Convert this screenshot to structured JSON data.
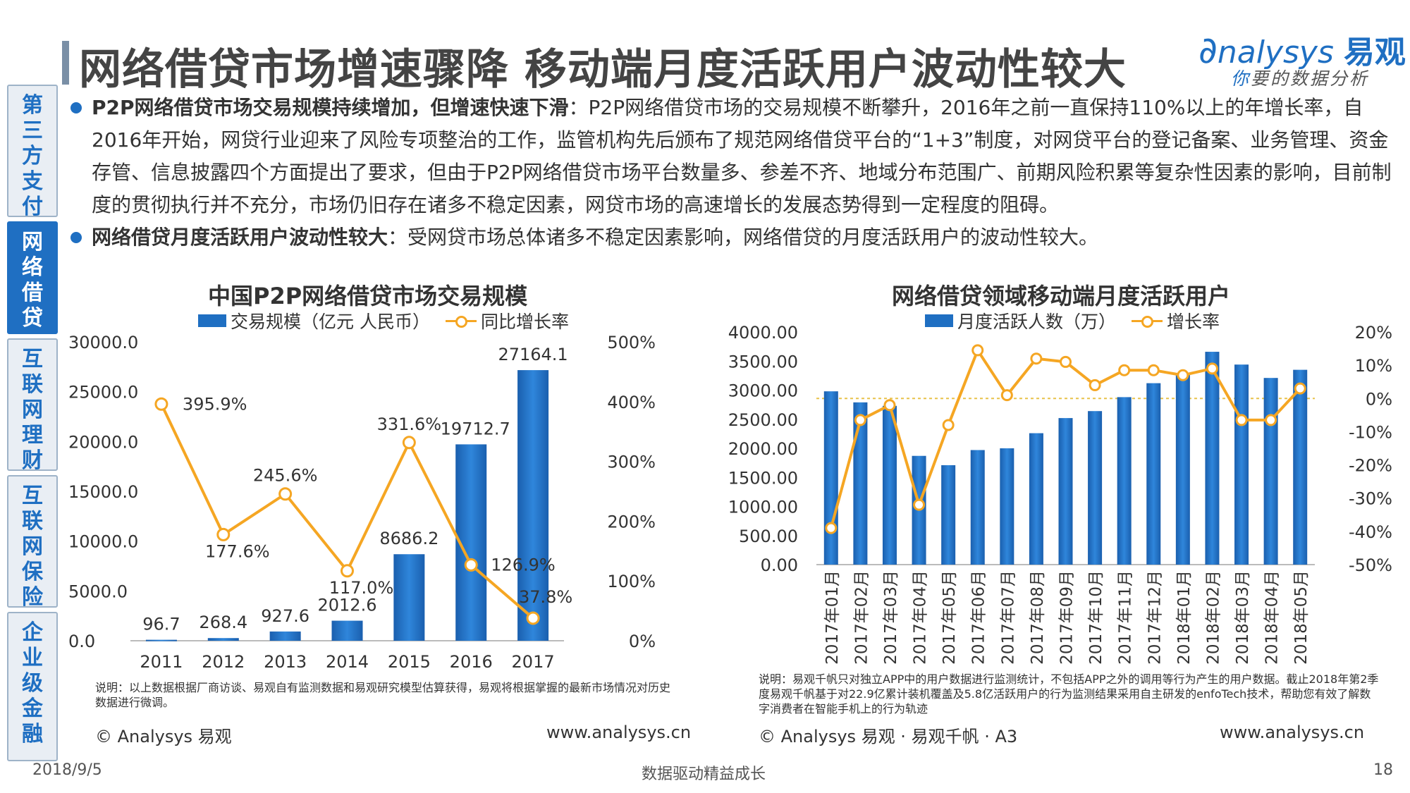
{
  "header": {
    "title": "网络借贷市场增速骤降  移动端月度活跃用户波动性较大",
    "logo_main": "nalysys",
    "logo_brand": "易观",
    "logo_sub_first": "你",
    "logo_sub_rest": "要的数据分析"
  },
  "sidebar": {
    "items": [
      {
        "chars": [
          "第",
          "三",
          "方",
          "支",
          "付"
        ],
        "active": false
      },
      {
        "chars": [
          "网",
          "络",
          "借",
          "贷"
        ],
        "active": true
      },
      {
        "chars": [
          "互",
          "联",
          "网",
          "理",
          "财"
        ],
        "active": false
      },
      {
        "chars": [
          "互",
          "联",
          "网",
          "保",
          "险"
        ],
        "active": false
      },
      {
        "chars": [
          "企",
          "业",
          "级",
          "金",
          "融"
        ],
        "active": false
      }
    ]
  },
  "bullets": [
    {
      "bold": "P2P网络借贷市场交易规模持续增加，但增速快速下滑",
      "text": "：P2P网络借贷市场的交易规模不断攀升，2016年之前一直保持110%以上的年增长率，自2016年开始，网贷行业迎来了风险专项整治的工作，监管机构先后颁布了规范网络借贷平台的“1+3”制度，对网贷平台的登记备案、业务管理、资金存管、信息披露四个方面提出了要求，但由于P2P网络借贷市场平台数量多、参差不齐、地域分布范围广、前期风险积累等复杂性因素的影响，目前制度的贯彻执行并不充分，市场仍旧存在诸多不稳定因素，网贷市场的高速增长的发展态势得到一定程度的阻碍。"
    },
    {
      "bold": "网络借贷月度活跃用户波动性较大",
      "text": "：受网贷市场总体诸多不稳定因素影响，网络借贷的月度活跃用户的波动性较大。"
    }
  ],
  "chart_data": [
    {
      "type": "bar",
      "title": "中国P2P网络借贷市场交易规模",
      "categories": [
        "2011",
        "2012",
        "2013",
        "2014",
        "2015",
        "2016",
        "2017"
      ],
      "series": [
        {
          "name": "交易规模（亿元 人民币）",
          "type": "bar",
          "axis": "left",
          "values": [
            96.7,
            268.4,
            927.6,
            2012.6,
            8686.2,
            19712.7,
            27164.1
          ],
          "labels": [
            "96.7",
            "268.4",
            "927.6",
            "2012.6",
            "8686.2",
            "19712.7",
            "27164.1"
          ]
        },
        {
          "name": "同比增长率",
          "type": "line",
          "axis": "right",
          "values": [
            395.9,
            177.6,
            245.6,
            117.0,
            331.6,
            126.9,
            37.8
          ],
          "labels": [
            "395.9%",
            "177.6%",
            "245.6%",
            "117.0%",
            "331.6%",
            "126.9%",
            "37.8%"
          ]
        }
      ],
      "y_left": {
        "min": 0,
        "max": 30000,
        "ticks": [
          "0.0",
          "5000.0",
          "10000.0",
          "15000.0",
          "20000.0",
          "25000.0",
          "30000.0"
        ]
      },
      "y_right": {
        "min": 0,
        "max": 500,
        "ticks": [
          "0%",
          "100%",
          "200%",
          "300%",
          "400%",
          "500%"
        ]
      },
      "bar_color": "#1f6fc2",
      "line_color": "#f5a623",
      "note": "说明：以上数据根据厂商访谈、易观自有监测数据和易观研究模型估算获得，易观将根据掌握的最新市场情况对历史数据进行微调。",
      "source": "© Analysys 易观",
      "url": "www.analysys.cn"
    },
    {
      "type": "bar",
      "title": "网络借贷领域移动端月度活跃用户",
      "categories": [
        "2017年01月",
        "2017年02月",
        "2017年03月",
        "2017年04月",
        "2017年05月",
        "2017年06月",
        "2017年07月",
        "2017年08月",
        "2017年09月",
        "2017年10月",
        "2017年11月",
        "2017年12月",
        "2018年01月",
        "2018年02月",
        "2018年03月",
        "2018年04月",
        "2018年05月"
      ],
      "series": [
        {
          "name": "月度活跃人数（万）",
          "type": "bar",
          "axis": "left",
          "values": [
            2980,
            2790,
            2730,
            1870,
            1710,
            1970,
            2000,
            2260,
            2520,
            2640,
            2880,
            3120,
            3280,
            3660,
            3440,
            3210,
            3350
          ]
        },
        {
          "name": "增长率",
          "type": "line",
          "axis": "right",
          "values": [
            -39,
            -6.5,
            -2,
            -32,
            -8,
            14.5,
            1,
            12,
            11,
            4,
            8.5,
            8.5,
            7,
            9,
            -6.5,
            -6.5,
            3
          ]
        }
      ],
      "y_left": {
        "min": 0,
        "max": 4000,
        "ticks": [
          "0.00",
          "500.00",
          "1000.00",
          "1500.00",
          "2000.00",
          "2500.00",
          "3000.00",
          "3500.00",
          "4000.00"
        ]
      },
      "y_right": {
        "min": -50,
        "max": 20,
        "ticks": [
          "-50%",
          "-40%",
          "-30%",
          "-20%",
          "-10%",
          "0%",
          "10%",
          "20%"
        ]
      },
      "bar_color": "#1f6fc2",
      "line_color": "#f5a623",
      "note": "说明：易观千帆只对独立APP中的用户数据进行监测统计，不包括APP之外的调用等行为产生的用户数据。截止2018年第2季度易观千帆基于对22.9亿累计装机覆盖及5.8亿活跃用户的行为监测结果采用自主研发的enfoTech技术，帮助您有效了解数字消费者在智能手机上的行为轨迹",
      "source": "© Analysys 易观 · 易观千帆 · A3",
      "url": "www.analysys.cn"
    }
  ],
  "footer": {
    "date": "2018/9/5",
    "slogan": "数据驱动精益成长",
    "page": "18"
  }
}
